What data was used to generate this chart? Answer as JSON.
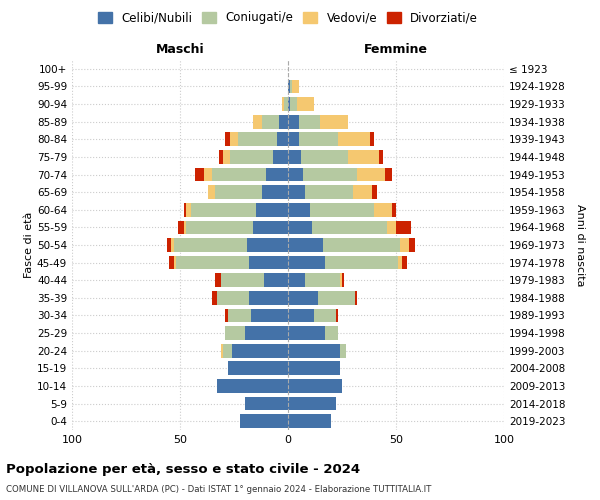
{
  "age_groups": [
    "0-4",
    "5-9",
    "10-14",
    "15-19",
    "20-24",
    "25-29",
    "30-34",
    "35-39",
    "40-44",
    "45-49",
    "50-54",
    "55-59",
    "60-64",
    "65-69",
    "70-74",
    "75-79",
    "80-84",
    "85-89",
    "90-94",
    "95-99",
    "100+"
  ],
  "birth_years": [
    "2019-2023",
    "2014-2018",
    "2009-2013",
    "2004-2008",
    "1999-2003",
    "1994-1998",
    "1989-1993",
    "1984-1988",
    "1979-1983",
    "1974-1978",
    "1969-1973",
    "1964-1968",
    "1959-1963",
    "1954-1958",
    "1949-1953",
    "1944-1948",
    "1939-1943",
    "1934-1938",
    "1929-1933",
    "1924-1928",
    "≤ 1923"
  ],
  "male_celibi": [
    22,
    20,
    33,
    28,
    26,
    20,
    17,
    18,
    11,
    18,
    19,
    16,
    15,
    12,
    10,
    7,
    5,
    4,
    0,
    0,
    0
  ],
  "male_coniugati": [
    0,
    0,
    0,
    0,
    4,
    9,
    11,
    15,
    20,
    34,
    34,
    31,
    30,
    22,
    25,
    20,
    18,
    8,
    2,
    0,
    0
  ],
  "male_vedovi": [
    0,
    0,
    0,
    0,
    1,
    0,
    0,
    0,
    0,
    1,
    1,
    1,
    2,
    3,
    4,
    3,
    4,
    4,
    1,
    0,
    0
  ],
  "male_divorziati": [
    0,
    0,
    0,
    0,
    0,
    0,
    1,
    2,
    3,
    2,
    2,
    3,
    1,
    0,
    4,
    2,
    2,
    0,
    0,
    0,
    0
  ],
  "female_celibi": [
    20,
    22,
    25,
    24,
    24,
    17,
    12,
    14,
    8,
    17,
    16,
    11,
    10,
    8,
    7,
    6,
    5,
    5,
    1,
    1,
    0
  ],
  "female_coniugati": [
    0,
    0,
    0,
    0,
    3,
    6,
    10,
    17,
    16,
    34,
    36,
    35,
    30,
    22,
    25,
    22,
    18,
    10,
    3,
    1,
    0
  ],
  "female_vedovi": [
    0,
    0,
    0,
    0,
    0,
    0,
    0,
    0,
    1,
    2,
    4,
    4,
    8,
    9,
    13,
    14,
    15,
    13,
    8,
    3,
    0
  ],
  "female_divorziati": [
    0,
    0,
    0,
    0,
    0,
    0,
    1,
    1,
    1,
    2,
    3,
    7,
    2,
    2,
    3,
    2,
    2,
    0,
    0,
    0,
    0
  ],
  "color_celibi": "#4472a8",
  "color_coniugati": "#b5c9a1",
  "color_vedovi": "#f5c870",
  "color_divorziati": "#cc2200",
  "title_main": "Popolazione per età, sesso e stato civile - 2024",
  "title_sub": "COMUNE DI VILLANOVA SULL'ARDA (PC) - Dati ISTAT 1° gennaio 2024 - Elaborazione TUTTITALIA.IT",
  "label_maschi": "Maschi",
  "label_femmine": "Femmine",
  "legend_celibi": "Celibi/Nubili",
  "legend_coniugati": "Coniugati/e",
  "legend_vedovi": "Vedovi/e",
  "legend_divorziati": "Divorziati/e",
  "ylabel_left": "Fasce di età",
  "ylabel_right": "Anni di nascita",
  "xlim": 100,
  "bg_color": "#ffffff",
  "grid_color": "#cccccc"
}
